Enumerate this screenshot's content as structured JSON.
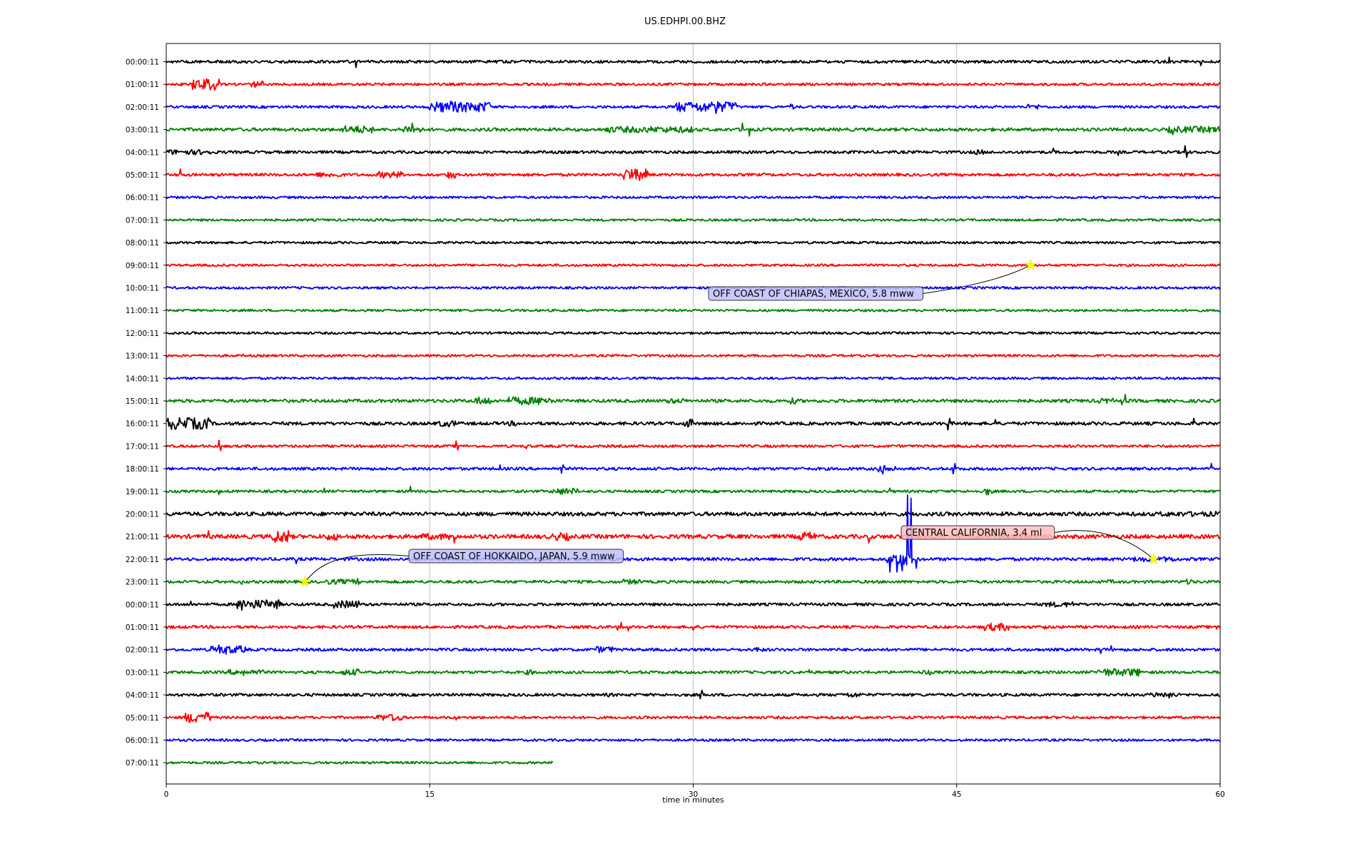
{
  "chart_data": {
    "type": "line",
    "title": "US.EDHPI.00.BHZ",
    "xlabel": "time in minutes",
    "ylabel": "",
    "xlim": [
      0,
      60
    ],
    "xticks": [
      0,
      15,
      30,
      45,
      60
    ],
    "grid_x": true,
    "colors": [
      "#000000",
      "#ff0000",
      "#0000ff",
      "#008000"
    ],
    "row_labels": [
      "00:00:11",
      "01:00:11",
      "02:00:11",
      "03:00:11",
      "04:00:11",
      "05:00:11",
      "06:00:11",
      "07:00:11",
      "08:00:11",
      "09:00:11",
      "10:00:11",
      "11:00:11",
      "12:00:11",
      "13:00:11",
      "14:00:11",
      "15:00:11",
      "16:00:11",
      "17:00:11",
      "18:00:11",
      "19:00:11",
      "20:00:11",
      "21:00:11",
      "22:00:11",
      "23:00:11",
      "00:00:11",
      "01:00:11",
      "02:00:11",
      "03:00:11",
      "04:00:11",
      "05:00:11",
      "06:00:11",
      "07:00:11"
    ],
    "rows": [
      {
        "noise": 0.22,
        "spikes": [
          [
            10.8,
            0.9
          ],
          [
            57.1,
            -0.7
          ],
          [
            58.9,
            0.6
          ]
        ]
      },
      {
        "noise": 0.2,
        "bursts": [
          [
            1.5,
            2.8,
            0.9
          ],
          [
            4.8,
            5.5,
            0.5
          ]
        ],
        "spikes": [
          [
            3.0,
            -0.8
          ]
        ]
      },
      {
        "noise": 0.2,
        "bursts": [
          [
            15.0,
            18.5,
            0.8
          ],
          [
            29.0,
            32.5,
            0.8
          ],
          [
            35.5,
            35.8,
            0.5
          ],
          [
            49.0,
            49.8,
            0.4
          ]
        ],
        "spikes": [
          [
            16.2,
            -0.9
          ],
          [
            31.3,
            1.0
          ]
        ]
      },
      {
        "noise": 0.25,
        "bursts": [
          [
            10.0,
            11.8,
            0.6
          ],
          [
            13.5,
            14.5,
            0.6
          ],
          [
            25.0,
            30.0,
            0.5
          ],
          [
            57.0,
            60.0,
            0.5
          ]
        ],
        "spikes": [
          [
            14.0,
            -1.0
          ],
          [
            32.8,
            -1.0
          ],
          [
            33.2,
            1.0
          ],
          [
            57.3,
            0.8
          ]
        ]
      },
      {
        "noise": 0.22,
        "bursts": [
          [
            0.0,
            2.5,
            0.4
          ],
          [
            46.0,
            46.5,
            0.4
          ]
        ],
        "spikes": [
          [
            54.2,
            0.5
          ],
          [
            50.5,
            -0.6
          ],
          [
            58.0,
            -1.0
          ],
          [
            58.1,
            0.8
          ]
        ]
      },
      {
        "noise": 0.22,
        "bursts": [
          [
            8.5,
            10.0,
            0.4
          ],
          [
            12.0,
            13.5,
            0.5
          ],
          [
            16.0,
            16.5,
            0.6
          ],
          [
            26.0,
            27.5,
            0.9
          ]
        ],
        "spikes": [
          [
            0.8,
            -0.9
          ],
          [
            26.5,
            -0.8
          ]
        ]
      },
      {
        "noise": 0.18
      },
      {
        "noise": 0.18
      },
      {
        "noise": 0.18
      },
      {
        "noise": 0.18
      },
      {
        "noise": 0.18
      },
      {
        "noise": 0.18
      },
      {
        "noise": 0.18
      },
      {
        "noise": 0.18
      },
      {
        "noise": 0.18
      },
      {
        "noise": 0.25,
        "bursts": [
          [
            17.5,
            18.5,
            0.6
          ],
          [
            19.5,
            22.0,
            0.6
          ],
          [
            28.5,
            29.5,
            0.4
          ],
          [
            35.5,
            36.0,
            0.5
          ],
          [
            53.0,
            54.0,
            0.4
          ]
        ],
        "spikes": [
          [
            54.6,
            -1.0
          ],
          [
            54.4,
            0.6
          ]
        ]
      },
      {
        "noise": 0.25,
        "bursts": [
          [
            0.0,
            2.5,
            0.9
          ],
          [
            15.5,
            16.5,
            0.5
          ],
          [
            19.5,
            20.0,
            0.4
          ],
          [
            29.5,
            30.0,
            0.7
          ]
        ],
        "spikes": [
          [
            0.3,
            0.9
          ],
          [
            1.2,
            -0.9
          ],
          [
            44.5,
            1.0
          ],
          [
            44.6,
            -0.8
          ],
          [
            47.2,
            -0.6
          ],
          [
            58.5,
            -0.8
          ]
        ]
      },
      {
        "noise": 0.2,
        "spikes": [
          [
            3.0,
            -0.9
          ],
          [
            3.1,
            0.7
          ],
          [
            16.5,
            -0.8
          ],
          [
            16.6,
            0.6
          ],
          [
            20.5,
            0.4
          ]
        ]
      },
      {
        "noise": 0.22,
        "bursts": [
          [
            40.5,
            41.5,
            0.5
          ]
        ],
        "spikes": [
          [
            19.0,
            -0.6
          ],
          [
            22.5,
            0.7
          ],
          [
            22.6,
            -0.6
          ],
          [
            40.8,
            0.8
          ],
          [
            44.8,
            0.8
          ],
          [
            44.9,
            -0.8
          ],
          [
            59.5,
            -0.8
          ]
        ]
      },
      {
        "noise": 0.2,
        "bursts": [
          [
            22.0,
            23.5,
            0.5
          ],
          [
            46.5,
            47.0,
            0.6
          ]
        ],
        "spikes": [
          [
            3.0,
            0.5
          ],
          [
            9.0,
            -0.5
          ],
          [
            13.9,
            -0.8
          ],
          [
            41.2,
            -0.5
          ]
        ]
      },
      {
        "noise": 0.3,
        "bursts": [
          [
            56.5,
            60.0,
            0.4
          ]
        ]
      },
      {
        "noise": 0.32,
        "bursts": [
          [
            6.0,
            7.0,
            1.0
          ],
          [
            9.0,
            9.8,
            0.6
          ],
          [
            14.5,
            16.5,
            0.5
          ],
          [
            22.0,
            23.0,
            0.6
          ],
          [
            36.0,
            37.0,
            0.7
          ]
        ],
        "spikes": [
          [
            2.4,
            -0.9
          ],
          [
            16.4,
            1.0
          ],
          [
            40.0,
            1.0
          ]
        ]
      },
      {
        "noise": 0.24,
        "bursts": [
          [
            41.0,
            42.5,
            1.0
          ],
          [
            55.0,
            57.5,
            0.4
          ]
        ],
        "spikes": [
          [
            7.4,
            0.7
          ],
          [
            16.0,
            -0.7
          ],
          [
            41.2,
            2.0
          ],
          [
            41.6,
            2.0
          ],
          [
            41.9,
            1.8
          ],
          [
            42.2,
            -10.0
          ],
          [
            42.4,
            -9.5
          ],
          [
            42.7,
            1.4
          ]
        ]
      },
      {
        "noise": 0.22,
        "bursts": [
          [
            9.0,
            11.0,
            0.4
          ],
          [
            26.0,
            27.0,
            0.4
          ],
          [
            53.5,
            54.0,
            0.3
          ],
          [
            58.0,
            58.5,
            0.4
          ]
        ],
        "spikes": [
          [
            4.3,
            0.4
          ],
          [
            10.9,
            -0.5
          ]
        ]
      },
      {
        "noise": 0.22,
        "bursts": [
          [
            4.0,
            6.5,
            0.7
          ],
          [
            9.5,
            11.0,
            0.6
          ],
          [
            50.0,
            51.5,
            0.4
          ]
        ],
        "spikes": [
          [
            1.4,
            -0.5
          ],
          [
            4.3,
            0.9
          ],
          [
            4.4,
            -0.6
          ],
          [
            51.6,
            -0.4
          ]
        ]
      },
      {
        "noise": 0.22,
        "bursts": [
          [
            46.5,
            48.0,
            0.6
          ]
        ],
        "spikes": [
          [
            25.7,
            0.5
          ],
          [
            25.9,
            -0.7
          ],
          [
            26.3,
            0.6
          ],
          [
            30.0,
            0.5
          ],
          [
            50.0,
            0.3
          ],
          [
            59.8,
            0.3
          ]
        ]
      },
      {
        "noise": 0.22,
        "bursts": [
          [
            2.5,
            4.5,
            0.6
          ],
          [
            24.5,
            25.5,
            0.5
          ],
          [
            33.5,
            34.0,
            0.4
          ]
        ],
        "spikes": [
          [
            3.0,
            -0.7
          ],
          [
            3.4,
            0.7
          ],
          [
            53.2,
            0.6
          ],
          [
            53.8,
            -0.6
          ]
        ]
      },
      {
        "noise": 0.22,
        "bursts": [
          [
            3.5,
            5.5,
            0.4
          ],
          [
            10.0,
            11.0,
            0.5
          ],
          [
            20.5,
            21.0,
            0.4
          ],
          [
            43.0,
            43.5,
            0.4
          ],
          [
            53.0,
            55.5,
            0.6
          ]
        ],
        "spikes": [
          [
            4.4,
            0.5
          ],
          [
            36.6,
            -0.4
          ],
          [
            55.0,
            0.4
          ]
        ]
      },
      {
        "noise": 0.22,
        "bursts": [
          [
            25.0,
            25.5,
            0.3
          ],
          [
            38.5,
            39.5,
            0.4
          ],
          [
            56.0,
            57.5,
            0.4
          ]
        ],
        "spikes": [
          [
            30.4,
            0.6
          ],
          [
            30.5,
            -0.7
          ],
          [
            57.1,
            0.5
          ]
        ]
      },
      {
        "noise": 0.2,
        "bursts": [
          [
            1.0,
            2.5,
            0.8
          ],
          [
            12.0,
            13.5,
            0.5
          ]
        ],
        "spikes": [
          [
            1.7,
            0.7
          ],
          [
            2.3,
            -0.8
          ],
          [
            12.9,
            0.5
          ],
          [
            16.5,
            0.4
          ]
        ]
      },
      {
        "noise": 0.18
      },
      {
        "noise": 0.18,
        "end": 22.0
      }
    ],
    "events": [
      {
        "label": "OFF COAST OF CHIAPAS, MEXICO, 5.8 mww",
        "row": 9,
        "x": 49.2,
        "box_color": "#c0c0ff"
      },
      {
        "label": "CENTRAL CALIFORNIA, 3.4 ml",
        "row": 22,
        "x": 56.2,
        "box_color": "#ffc0c0"
      },
      {
        "label": "OFF COAST OF HOKKAIDO, JAPAN, 5.9 mww",
        "row": 23,
        "x": 7.9,
        "box_color": "#c0c0ff"
      }
    ]
  }
}
